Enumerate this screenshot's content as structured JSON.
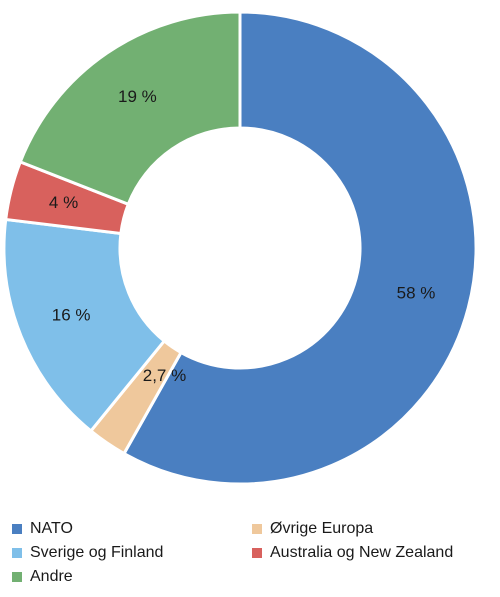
{
  "chart_data": {
    "type": "pie",
    "donut": true,
    "slices": [
      {
        "name": "NATO",
        "value": 58,
        "label": "58 %",
        "color": "#4a7fc1"
      },
      {
        "name": "Øvrige Europa",
        "value": 2.7,
        "label": "2,7 %",
        "color": "#efc89c"
      },
      {
        "name": "Sverige og Finland",
        "value": 16,
        "label": "16 %",
        "color": "#7fbfe9"
      },
      {
        "name": "Australia og New Zealand",
        "value": 4,
        "label": "4 %",
        "color": "#d8615d"
      },
      {
        "name": "Andre",
        "value": 19,
        "label": "19 %",
        "color": "#72b072"
      }
    ],
    "legend": {
      "placement": "bottom",
      "items": [
        "NATO",
        "Øvrige Europa",
        "Sverige og Finland",
        "Australia og New Zealand",
        "Andre"
      ]
    }
  }
}
